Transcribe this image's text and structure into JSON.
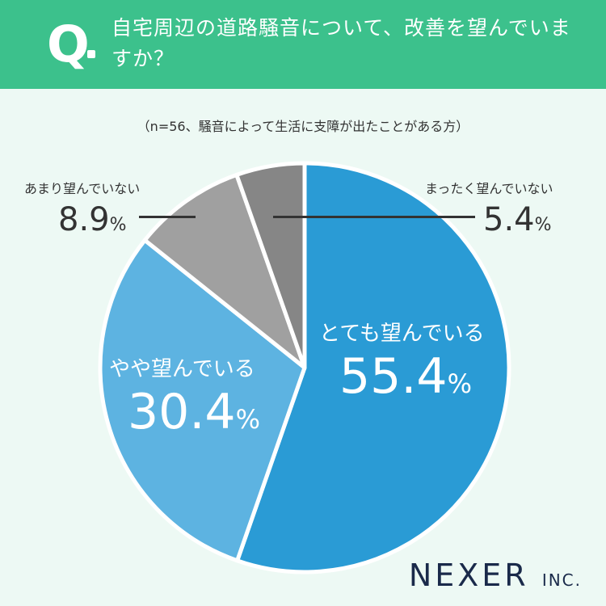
{
  "question": {
    "mark": "Q",
    "text": "自宅周辺の道路騒音について、改善を望んでいますか？"
  },
  "sample_note": "（n=56、騒音によって生活に支障が出たことがある方）",
  "chart_data": {
    "type": "pie",
    "categories": [
      "とても望んでいる",
      "やや望んでいる",
      "あまり望んでいない",
      "まったく望んでいない"
    ],
    "values": [
      55.4,
      30.4,
      8.9,
      5.4
    ],
    "unit": "%",
    "colors": [
      "#2a9bd5",
      "#5db3e1",
      "#a0a0a0",
      "#868686"
    ]
  },
  "labels": {
    "very": {
      "category": "とても望んでいる",
      "value": "55.4",
      "unit": "%"
    },
    "somewhat": {
      "category": "やや望んでいる",
      "value": "30.4",
      "unit": "%"
    },
    "not_much": {
      "category": "あまり望んでいない",
      "value": "8.9",
      "unit": "%"
    },
    "not_at_all": {
      "category": "まったく望んでいない",
      "value": "5.4",
      "unit": "%"
    }
  },
  "brand": {
    "name": "NEXER",
    "suffix": "INC."
  }
}
